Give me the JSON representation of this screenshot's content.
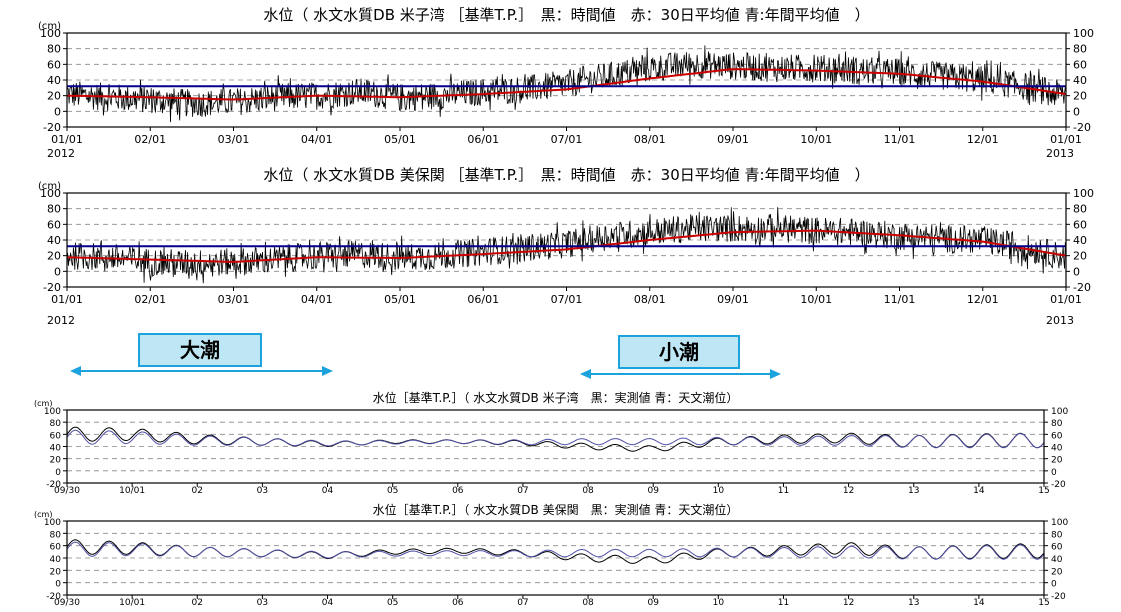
{
  "annotations": {
    "spring_tide_label": "大潮",
    "neap_tide_label": "小潮",
    "arrow_color": "#1aa3dd"
  },
  "colors": {
    "hourly": "#000000",
    "mean30": "#cc0000",
    "annual": "#00008b",
    "astro": "#5050a8"
  },
  "chart_data": [
    {
      "type": "line",
      "title": "水位（ 水文水質DB 米子湾 ［基準T.P.］　黒：時間値　赤：30日平均値 青:年間平均値　）",
      "unit": "(cm)",
      "ylim": [
        -20,
        100
      ],
      "y_ticks": [
        -20,
        0,
        20,
        40,
        60,
        80,
        100
      ],
      "x_ticks": [
        "01/01",
        "02/01",
        "03/01",
        "04/01",
        "05/01",
        "06/01",
        "07/01",
        "08/01",
        "09/01",
        "10/01",
        "11/01",
        "12/01",
        "01/01"
      ],
      "year_start": "2012",
      "year_end": "2013",
      "grid": "dashed horizontal",
      "series": [
        {
          "name": "時間値",
          "color": "#000000",
          "months": [
            0,
            0.5,
            1,
            1.5,
            2,
            2.5,
            3,
            3.5,
            4,
            4.5,
            5,
            5.5,
            6,
            6.5,
            7,
            7.5,
            8,
            8.5,
            9,
            9.5,
            10,
            10.5,
            11,
            11.5,
            12
          ],
          "values": [
            22,
            18,
            15,
            10,
            12,
            18,
            20,
            25,
            18,
            20,
            25,
            28,
            35,
            45,
            55,
            60,
            58,
            55,
            55,
            52,
            50,
            45,
            40,
            32,
            20
          ],
          "noise": 18
        },
        {
          "name": "30日平均値",
          "color": "#cc0000",
          "months": [
            0,
            1,
            2,
            3,
            4,
            5,
            6,
            7,
            8,
            9,
            10,
            11,
            12
          ],
          "values": [
            20,
            18,
            15,
            20,
            18,
            22,
            28,
            42,
            54,
            52,
            48,
            38,
            22
          ]
        },
        {
          "name": "年間平均値",
          "color": "#00008b",
          "months": [
            0,
            12
          ],
          "values": [
            32,
            32
          ]
        }
      ]
    },
    {
      "type": "line",
      "title": "水位（ 水文水質DB 美保関 ［基準T.P.］　黒：時間値　赤：30日平均値 青:年間平均値　）",
      "unit": "(cm)",
      "ylim": [
        -20,
        100
      ],
      "y_ticks": [
        -20,
        0,
        20,
        40,
        60,
        80,
        100
      ],
      "x_ticks": [
        "01/01",
        "02/01",
        "03/01",
        "04/01",
        "05/01",
        "06/01",
        "07/01",
        "08/01",
        "09/01",
        "10/01",
        "11/01",
        "12/01",
        "01/01"
      ],
      "year_start": "2012",
      "year_end": "2013",
      "grid": "dashed horizontal",
      "series": [
        {
          "name": "時間値",
          "color": "#000000",
          "months": [
            0,
            0.5,
            1,
            1.5,
            2,
            2.5,
            3,
            3.5,
            4,
            4.5,
            5,
            5.5,
            6,
            6.5,
            7,
            7.5,
            8,
            8.5,
            9,
            9.5,
            10,
            10.5,
            11,
            11.5,
            12
          ],
          "values": [
            20,
            18,
            12,
            10,
            12,
            15,
            20,
            22,
            18,
            20,
            25,
            30,
            35,
            45,
            50,
            55,
            55,
            55,
            52,
            50,
            45,
            42,
            40,
            30,
            18
          ],
          "noise": 18
        },
        {
          "name": "30日平均値",
          "color": "#cc0000",
          "months": [
            0,
            1,
            2,
            3,
            4,
            5,
            6,
            7,
            8,
            9,
            10,
            11,
            12
          ],
          "values": [
            18,
            15,
            12,
            18,
            17,
            22,
            28,
            40,
            50,
            52,
            46,
            38,
            20
          ]
        },
        {
          "name": "年間平均値",
          "color": "#00008b",
          "months": [
            0,
            12
          ],
          "values": [
            32,
            32
          ]
        }
      ]
    },
    {
      "type": "line",
      "title": "水位［基準T.P.］（ 水文水質DB 米子湾　黒：実測値 青：天文潮位）",
      "unit": "(cm)",
      "ylim": [
        -20,
        100
      ],
      "y_ticks": [
        -20,
        0,
        20,
        40,
        60,
        80,
        100
      ],
      "x_ticks": [
        "09/30",
        "10/01",
        "02",
        "03",
        "04",
        "05",
        "06",
        "07",
        "08",
        "09",
        "10",
        "11",
        "12",
        "13",
        "14",
        "15"
      ],
      "grid": "dashed horizontal",
      "series": [
        {
          "name": "実測値",
          "color": "#000000",
          "days": [
            0,
            1,
            2,
            3,
            4,
            5,
            6,
            7,
            8,
            9,
            10,
            11,
            12,
            13,
            14,
            15
          ],
          "values": [
            60,
            60,
            52,
            48,
            44,
            48,
            48,
            46,
            40,
            36,
            48,
            52,
            54,
            48,
            50,
            50
          ],
          "amp": [
            12,
            10,
            8,
            6,
            4,
            3,
            3,
            4,
            5,
            5,
            6,
            7,
            8,
            10,
            11,
            12
          ]
        },
        {
          "name": "天文潮位",
          "color": "#5050a8",
          "days": [
            0,
            1,
            2,
            3,
            4,
            5,
            6,
            7,
            8,
            9,
            10,
            11,
            12,
            13,
            14,
            15
          ],
          "values": [
            55,
            55,
            50,
            48,
            45,
            47,
            48,
            47,
            48,
            48,
            49,
            49,
            50,
            48,
            49,
            50
          ],
          "amp": [
            12,
            10,
            8,
            6,
            4,
            3,
            3,
            4,
            5,
            5,
            6,
            7,
            8,
            10,
            11,
            12
          ]
        }
      ]
    },
    {
      "type": "line",
      "title": "水位［基準T.P.］（ 水文水質DB 美保関　黒：実測値 青：天文潮位）",
      "unit": "(cm)",
      "ylim": [
        -20,
        100
      ],
      "y_ticks": [
        -20,
        0,
        20,
        40,
        60,
        80,
        100
      ],
      "x_ticks": [
        "09/30",
        "10/01",
        "02",
        "03",
        "04",
        "05",
        "06",
        "07",
        "08",
        "09",
        "10",
        "11",
        "12",
        "13",
        "14",
        "15"
      ],
      "grid": "dashed horizontal",
      "series": [
        {
          "name": "実測値",
          "color": "#000000",
          "days": [
            0,
            1,
            2,
            3,
            4,
            5,
            6,
            7,
            8,
            9,
            10,
            11,
            12,
            13,
            14,
            15
          ],
          "values": [
            58,
            56,
            50,
            48,
            44,
            50,
            52,
            48,
            40,
            36,
            48,
            52,
            56,
            48,
            50,
            52
          ],
          "amp": [
            12,
            10,
            8,
            6,
            5,
            4,
            4,
            5,
            6,
            6,
            7,
            8,
            9,
            10,
            11,
            12
          ]
        },
        {
          "name": "天文潮位",
          "color": "#5050a8",
          "days": [
            0,
            1,
            2,
            3,
            4,
            5,
            6,
            7,
            8,
            9,
            10,
            11,
            12,
            13,
            14,
            15
          ],
          "values": [
            54,
            54,
            50,
            48,
            45,
            47,
            48,
            47,
            48,
            48,
            49,
            49,
            50,
            48,
            49,
            50
          ],
          "amp": [
            12,
            10,
            8,
            6,
            5,
            4,
            4,
            5,
            6,
            6,
            7,
            8,
            9,
            10,
            11,
            12
          ]
        }
      ]
    }
  ]
}
